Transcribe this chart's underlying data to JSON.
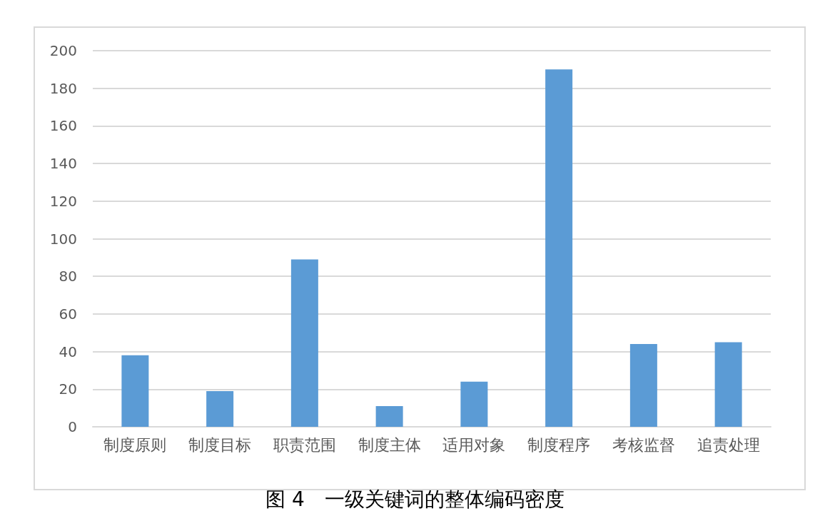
{
  "chart_data": {
    "type": "bar",
    "title": "图 4　一级关键词的整体编码密度",
    "categories": [
      "制度原则",
      "制度目标",
      "职责范围",
      "制度主体",
      "适用对象",
      "制度程序",
      "考核监督",
      "追责处理"
    ],
    "values": [
      38,
      19,
      89,
      11,
      24,
      190,
      44,
      45
    ],
    "color": "#5b9bd5",
    "ylim": [
      0,
      200
    ],
    "yticks": [
      0,
      20,
      40,
      60,
      80,
      100,
      120,
      140,
      160,
      180,
      200
    ],
    "grid": "y"
  }
}
